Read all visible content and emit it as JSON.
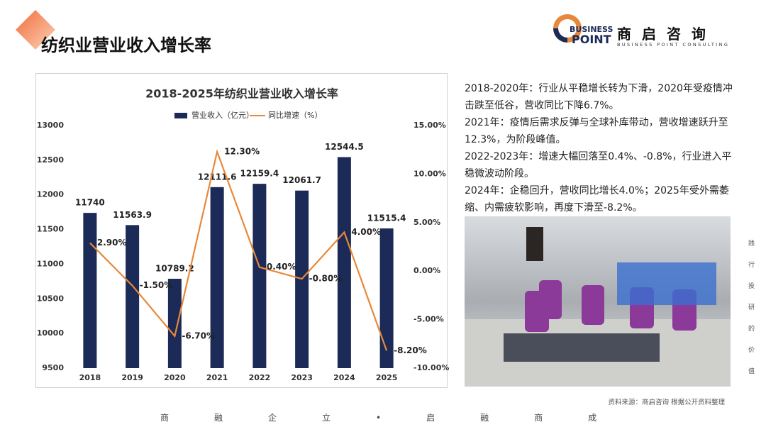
{
  "header": {
    "title": "纺织业营业收入增长率"
  },
  "logo": {
    "line1": "BUSINESS",
    "line2": "POINT",
    "name": "商 启 咨 询",
    "tagline": "BUSINESS POINT CONSULTING"
  },
  "chart_data": {
    "type": "bar",
    "title": "2018-2025年纺织业营业收入增长率",
    "categories": [
      "2018",
      "2019",
      "2020",
      "2021",
      "2022",
      "2023",
      "2024",
      "2025"
    ],
    "series": [
      {
        "name": "营业收入（亿元）",
        "type": "bar",
        "color": "#1b2a56",
        "values": [
          11740,
          11563.9,
          10789.2,
          12111.6,
          12159.4,
          12061.7,
          12544.5,
          11515.4
        ]
      },
      {
        "name": "同比增速（%）",
        "type": "line",
        "axis": "y2",
        "color": "#e8883a",
        "values": [
          2.9,
          -1.5,
          -6.7,
          12.3,
          0.4,
          -0.8,
          4.0,
          -8.2
        ],
        "value_labels": [
          "2.90%",
          "-1.50%",
          "-6.70%",
          "12.30%",
          "0.40%",
          "-0.80%",
          "4.00%",
          "-8.20%"
        ]
      }
    ],
    "ylim": [
      9500,
      13000
    ],
    "yticks": [
      9500,
      10000,
      10500,
      11000,
      11500,
      12000,
      12500,
      13000
    ],
    "y2lim": [
      -10,
      15
    ],
    "y2ticks": [
      {
        "value": -10,
        "label": "-10.00%"
      },
      {
        "value": -5,
        "label": "-5.00%"
      },
      {
        "value": 0,
        "label": "0.00%"
      },
      {
        "value": 5,
        "label": "5.00%"
      },
      {
        "value": 10,
        "label": "10.00%"
      },
      {
        "value": 15,
        "label": "15.00%"
      }
    ],
    "grid": false,
    "legend": "top"
  },
  "notes": [
    "2018-2020年：行业从平稳增长转为下滑，2020年受疫情冲击跌至低谷，营收同比下降6.7%。",
    "2021年：疫情后需求反弹与全球补库带动，营收增速跃升至12.3%，为阶段峰值。",
    "2022-2023年：增速大幅回落至0.4%、-0.8%，行业进入平稳微波动阶段。",
    "2024年：企稳回升，营收同比增长4.0%；2025年受外需萎缩、内需疲软影响，再度下滑至-8.2%。"
  ],
  "source": "资料来源：商启咨询 根据公开资料整理",
  "side_text": "践行投研的价值",
  "footer": "商融企立•启融商成"
}
